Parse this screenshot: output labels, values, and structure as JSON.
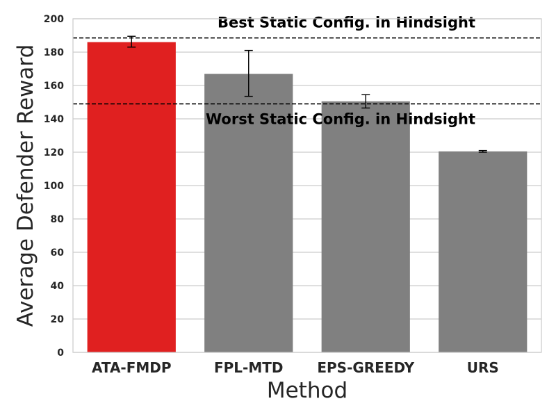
{
  "chart_data": {
    "type": "bar",
    "categories": [
      "ATA-FMDP",
      "FPL-MTD",
      "EPS-GREEDY",
      "URS"
    ],
    "values": [
      186,
      167,
      150.5,
      120.5
    ],
    "error": [
      [
        183,
        189.5
      ],
      [
        153.5,
        181
      ],
      [
        146.5,
        154.5
      ],
      [
        120,
        121
      ]
    ],
    "bar_colors": [
      "#e02020",
      "#808080",
      "#808080",
      "#808080"
    ],
    "xlabel": "Method",
    "ylabel": "Average Defender Reward",
    "ylim": [
      0,
      200
    ],
    "yticks": [
      0,
      20,
      40,
      60,
      80,
      100,
      120,
      140,
      160,
      180,
      200
    ],
    "grid": true,
    "reference_lines": [
      {
        "label": "Best Static Config. in Hindsight",
        "value": 188.5
      },
      {
        "label": "Worst Static Config. in Hindsight",
        "value": 149
      }
    ]
  }
}
